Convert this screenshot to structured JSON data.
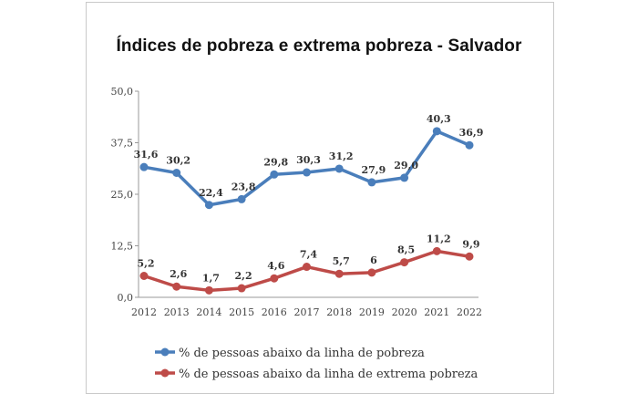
{
  "chart_data": {
    "type": "line",
    "title": "Índices de pobreza e extrema pobreza - Salvador",
    "categories": [
      "2012",
      "2013",
      "2014",
      "2015",
      "2016",
      "2017",
      "2018",
      "2019",
      "2020",
      "2021",
      "2022"
    ],
    "y_ticks": [
      "0,0",
      "12,5",
      "25,0",
      "37,5",
      "50,0"
    ],
    "ylim": [
      0,
      50
    ],
    "grid": false,
    "legend_position": "bottom",
    "series": [
      {
        "name": "% de pessoas abaixo da linha de pobreza",
        "color": "#4a7ebb",
        "values": [
          31.6,
          30.2,
          22.4,
          23.8,
          29.8,
          30.3,
          31.2,
          27.9,
          29.0,
          40.3,
          36.9
        ],
        "labels": [
          "31,6",
          "30,2",
          "22,4",
          "23,8",
          "29,8",
          "30,3",
          "31,2",
          "27,9",
          "29,0",
          "40,3",
          "36,9"
        ]
      },
      {
        "name": "% de pessoas abaixo da linha de extrema pobreza",
        "color": "#be4b48",
        "values": [
          5.2,
          2.6,
          1.7,
          2.2,
          4.6,
          7.4,
          5.7,
          6,
          8.5,
          11.2,
          9.9
        ],
        "labels": [
          "5,2",
          "2,6",
          "1,7",
          "2,2",
          "4,6",
          "7,4",
          "5,7",
          "6",
          "8,5",
          "11,2",
          "9,9"
        ]
      }
    ]
  }
}
